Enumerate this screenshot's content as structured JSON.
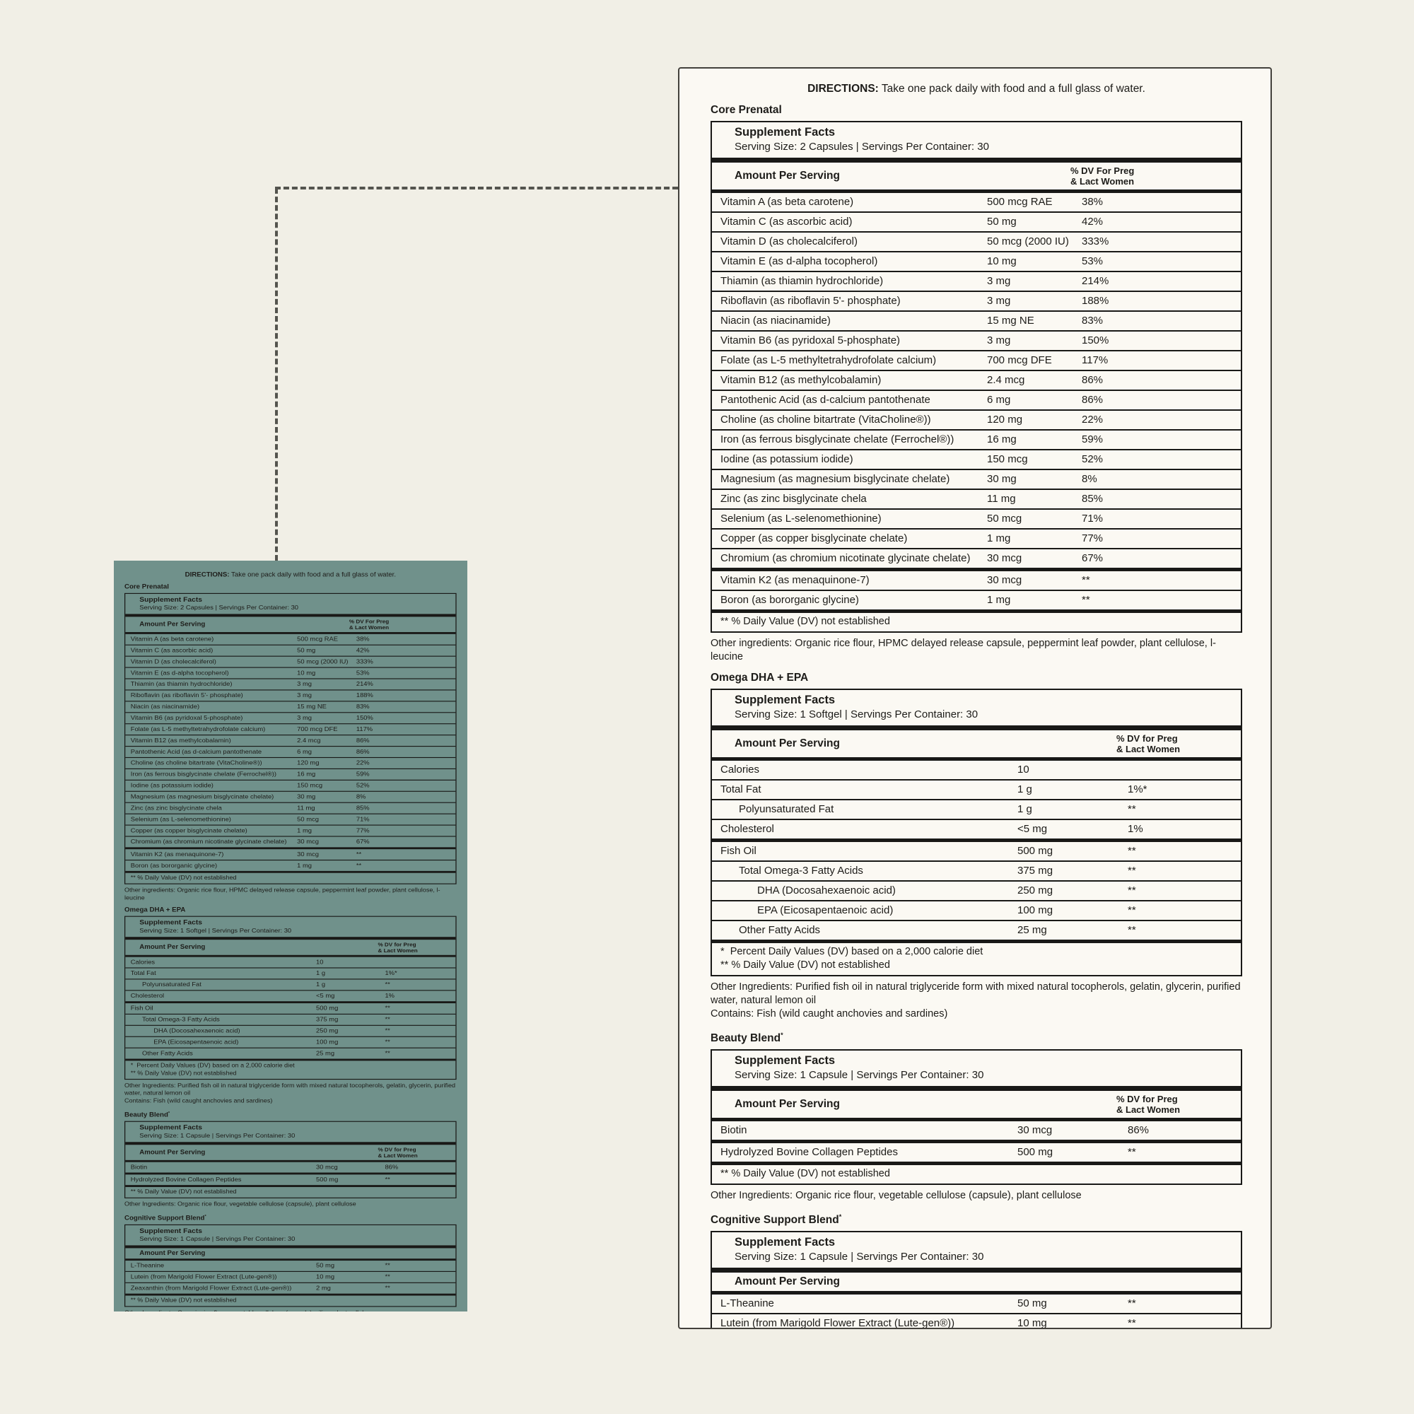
{
  "colors": {
    "page_background": "#f1efe6",
    "panel_background": "#fbf9f3",
    "teal_label_background": "#70918b",
    "ink": "#1d1c19",
    "rule": "#191917",
    "dotted_connector": "#54544e"
  },
  "label": {
    "directions": {
      "label": "DIRECTIONS:",
      "text": " Take one pack daily with food and a full glass of water."
    },
    "sections": [
      {
        "id": "core-prenatal",
        "title": "Core Prenatal",
        "title_sup": "",
        "grid": "core",
        "sf_title": "Supplement Facts",
        "serving": "Serving Size: 2 Capsules  |  Servings Per Container: 30",
        "amount_header": "Amount Per Serving",
        "dv_header": [
          "% DV For Preg",
          "& Lact Women"
        ],
        "groups": [
          {
            "rows": [
              {
                "name": "Vitamin A (as beta carotene)",
                "amount": "500 mcg RAE",
                "dv": "38%",
                "indent": 0
              },
              {
                "name": "Vitamin C (as ascorbic acid)",
                "amount": "50 mg",
                "dv": "42%",
                "indent": 0
              },
              {
                "name": "Vitamin D (as cholecalciferol)",
                "amount": "50 mcg (2000 IU)",
                "dv": "333%",
                "indent": 0
              },
              {
                "name": "Vitamin E (as d-alpha tocopherol)",
                "amount": "10 mg",
                "dv": "53%",
                "indent": 0
              },
              {
                "name": "Thiamin (as thiamin hydrochloride)",
                "amount": "3 mg",
                "dv": "214%",
                "indent": 0
              },
              {
                "name": "Riboflavin (as riboflavin 5'- phosphate)",
                "amount": "3 mg",
                "dv": "188%",
                "indent": 0
              },
              {
                "name": "Niacin (as niacinamide)",
                "amount": "15 mg NE",
                "dv": "83%",
                "indent": 0
              },
              {
                "name": "Vitamin B6 (as pyridoxal 5-phosphate)",
                "amount": "3 mg",
                "dv": "150%",
                "indent": 0
              },
              {
                "name": "Folate (as L-5 methyltetrahydrofolate calcium)",
                "amount": "700 mcg DFE",
                "dv": "117%",
                "indent": 0
              },
              {
                "name": "Vitamin B12 (as methylcobalamin)",
                "amount": "2.4 mcg",
                "dv": "86%",
                "indent": 0
              },
              {
                "name": "Pantothenic Acid (as d-calcium pantothenate",
                "amount": "6 mg",
                "dv": "86%",
                "indent": 0
              },
              {
                "name": "Choline (as choline bitartrate (VitaCholine®))",
                "amount": "120 mg",
                "dv": "22%",
                "indent": 0
              },
              {
                "name": "Iron (as ferrous bisglycinate chelate (Ferrochel®))",
                "amount": "16 mg",
                "dv": "59%",
                "indent": 0
              },
              {
                "name": "Iodine (as potassium iodide)",
                "amount": "150 mcg",
                "dv": "52%",
                "indent": 0
              },
              {
                "name": "Magnesium (as magnesium bisglycinate chelate)",
                "amount": "30 mg",
                "dv": "8%",
                "indent": 0
              },
              {
                "name": "Zinc (as zinc bisglycinate chela",
                "amount": "11 mg",
                "dv": "85%",
                "indent": 0
              },
              {
                "name": "Selenium (as L-selenomethionine)",
                "amount": "50 mcg",
                "dv": "71%",
                "indent": 0
              },
              {
                "name": "Copper (as copper bisglycinate chelate)",
                "amount": "1 mg",
                "dv": "77%",
                "indent": 0
              },
              {
                "name": "Chromium (as chromium nicotinate glycinate chelate)",
                "amount": "30 mcg",
                "dv": "67%",
                "indent": 0
              }
            ]
          },
          {
            "rows": [
              {
                "name": "Vitamin K2 (as menaquinone-7)",
                "amount": "30 mcg",
                "dv": "**",
                "indent": 0
              },
              {
                "name": "Boron (as bororganic glycine)",
                "amount": "1 mg",
                "dv": "**",
                "indent": 0
              }
            ]
          }
        ],
        "footnotes": [
          "** % Daily Value (DV) not established"
        ],
        "other_ingredients": [
          "Other ingredients: Organic rice flour, HPMC delayed release capsule, peppermint leaf powder, plant cellulose, l-leucine"
        ]
      },
      {
        "id": "omega-dha-epa",
        "title": "Omega DHA + EPA",
        "title_sup": "",
        "grid": "wide",
        "sf_title": "Supplement Facts",
        "serving": "Serving Size: 1 Softgel  |  Servings Per Container: 30",
        "amount_header": "Amount Per Serving",
        "dv_header": [
          "% DV for Preg",
          "& Lact Women"
        ],
        "groups": [
          {
            "rows": [
              {
                "name": "Calories",
                "amount": "10",
                "dv": "",
                "indent": 0
              },
              {
                "name": "Total Fat",
                "amount": "1 g",
                "dv": "1%*",
                "indent": 0
              },
              {
                "name": "Polyunsaturated Fat",
                "amount": "1 g",
                "dv": "**",
                "indent": 1
              },
              {
                "name": "Cholesterol",
                "amount": "<5 mg",
                "dv": "1%",
                "indent": 0
              }
            ]
          },
          {
            "rows": [
              {
                "name": "Fish Oil",
                "amount": "500 mg",
                "dv": "**",
                "indent": 0
              },
              {
                "name": "Total Omega-3 Fatty Acids",
                "amount": "375 mg",
                "dv": "**",
                "indent": 1
              },
              {
                "name": "DHA (Docosahexaenoic acid)",
                "amount": "250 mg",
                "dv": "**",
                "indent": 2
              },
              {
                "name": "EPA (Eicosapentaenoic acid)",
                "amount": "100 mg",
                "dv": "**",
                "indent": 2
              },
              {
                "name": "Other Fatty Acids",
                "amount": "25 mg",
                "dv": "**",
                "indent": 1
              }
            ]
          }
        ],
        "footnotes": [
          "*  Percent Daily Values (DV) based on a 2,000 calorie diet",
          "** % Daily Value (DV) not established"
        ],
        "other_ingredients": [
          "Other Ingredients: Purified fish oil in natural triglyceride form with mixed natural tocopherols, gelatin, glycerin, purified water, natural lemon oil",
          "Contains: Fish (wild caught anchovies and sardines)"
        ]
      },
      {
        "id": "beauty-blend",
        "title": "Beauty Blend",
        "title_sup": "*",
        "grid": "wide",
        "sf_title": "Supplement Facts",
        "serving": "Serving Size: 1 Capsule  |  Servings Per Container: 30",
        "amount_header": "Amount Per Serving",
        "dv_header": [
          "% DV for Preg",
          "& Lact Women"
        ],
        "groups": [
          {
            "rows": [
              {
                "name": "Biotin",
                "amount": "30 mcg",
                "dv": "86%",
                "indent": 0
              }
            ]
          },
          {
            "rows": [
              {
                "name": "Hydrolyzed Bovine Collagen Peptides",
                "amount": "500 mg",
                "dv": "**",
                "indent": 0
              }
            ]
          }
        ],
        "footnotes": [
          "** % Daily Value (DV) not established"
        ],
        "other_ingredients": [
          "Other Ingredients: Organic rice flour, vegetable cellulose (capsule), plant cellulose"
        ]
      },
      {
        "id": "cognitive-support-blend",
        "title": "Cognitive Support Blend",
        "title_sup": "*",
        "grid": "wide",
        "sf_title": "Supplement Facts",
        "serving": "Serving Size: 1 Capsule  |  Servings Per Container: 30",
        "amount_header": "Amount Per Serving",
        "dv_header": [],
        "groups": [
          {
            "rows": [
              {
                "name": "L-Theanine",
                "amount": "50 mg",
                "dv": "**",
                "indent": 0
              },
              {
                "name": "Lutein (from Marigold Flower Extract (Lute-gen®))",
                "amount": "10 mg",
                "dv": "**",
                "indent": 0
              },
              {
                "name": "Zeaxanthin (from Marigold Flower Extract (Lute-gen®))",
                "amount": "2 mg",
                "dv": "**",
                "indent": 0
              }
            ]
          }
        ],
        "footnotes": [
          "** % Daily Value (DV) not established"
        ],
        "other_ingredients": [
          "Other Ingredients: Organic rice flour, vegetable cellulose (capsule), silica, plant cellulose"
        ]
      }
    ]
  }
}
